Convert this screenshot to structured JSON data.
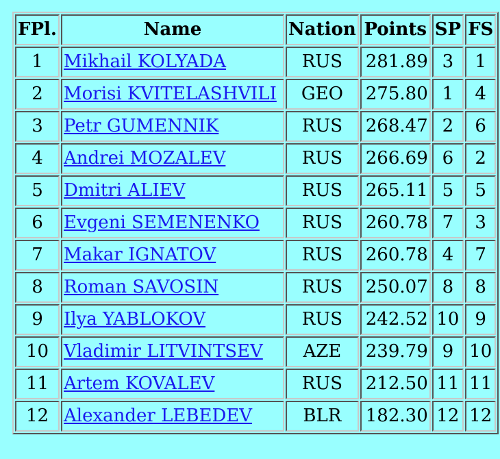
{
  "table": {
    "headers": {
      "place": "FPl.",
      "name": "Name",
      "nation": "Nation",
      "points": "Points",
      "sp": "SP",
      "fs": "FS"
    },
    "rows": [
      {
        "place": "1",
        "name": "Mikhail KOLYADA",
        "nation": "RUS",
        "points": "281.89",
        "sp": "3",
        "fs": "1"
      },
      {
        "place": "2",
        "name": "Morisi KVITELASHVILI",
        "nation": "GEO",
        "points": "275.80",
        "sp": "1",
        "fs": "4"
      },
      {
        "place": "3",
        "name": "Petr GUMENNIK",
        "nation": "RUS",
        "points": "268.47",
        "sp": "2",
        "fs": "6"
      },
      {
        "place": "4",
        "name": "Andrei MOZALEV",
        "nation": "RUS",
        "points": "266.69",
        "sp": "6",
        "fs": "2"
      },
      {
        "place": "5",
        "name": "Dmitri ALIEV",
        "nation": "RUS",
        "points": "265.11",
        "sp": "5",
        "fs": "5"
      },
      {
        "place": "6",
        "name": "Evgeni SEMENENKO",
        "nation": "RUS",
        "points": "260.78",
        "sp": "7",
        "fs": "3"
      },
      {
        "place": "7",
        "name": "Makar IGNATOV",
        "nation": "RUS",
        "points": "260.78",
        "sp": "4",
        "fs": "7"
      },
      {
        "place": "8",
        "name": "Roman SAVOSIN",
        "nation": "RUS",
        "points": "250.07",
        "sp": "8",
        "fs": "8"
      },
      {
        "place": "9",
        "name": "Ilya YABLOKOV",
        "nation": "RUS",
        "points": "242.52",
        "sp": "10",
        "fs": "9"
      },
      {
        "place": "10",
        "name": "Vladimir LITVINTSEV",
        "nation": "AZE",
        "points": "239.79",
        "sp": "9",
        "fs": "10"
      },
      {
        "place": "11",
        "name": "Artem KOVALEV",
        "nation": "RUS",
        "points": "212.50",
        "sp": "11",
        "fs": "11"
      },
      {
        "place": "12",
        "name": "Alexander LEBEDEV",
        "nation": "BLR",
        "points": "182.30",
        "sp": "12",
        "fs": "12"
      }
    ]
  },
  "colors": {
    "background": "#99ffff",
    "link": "#1a1aee"
  }
}
